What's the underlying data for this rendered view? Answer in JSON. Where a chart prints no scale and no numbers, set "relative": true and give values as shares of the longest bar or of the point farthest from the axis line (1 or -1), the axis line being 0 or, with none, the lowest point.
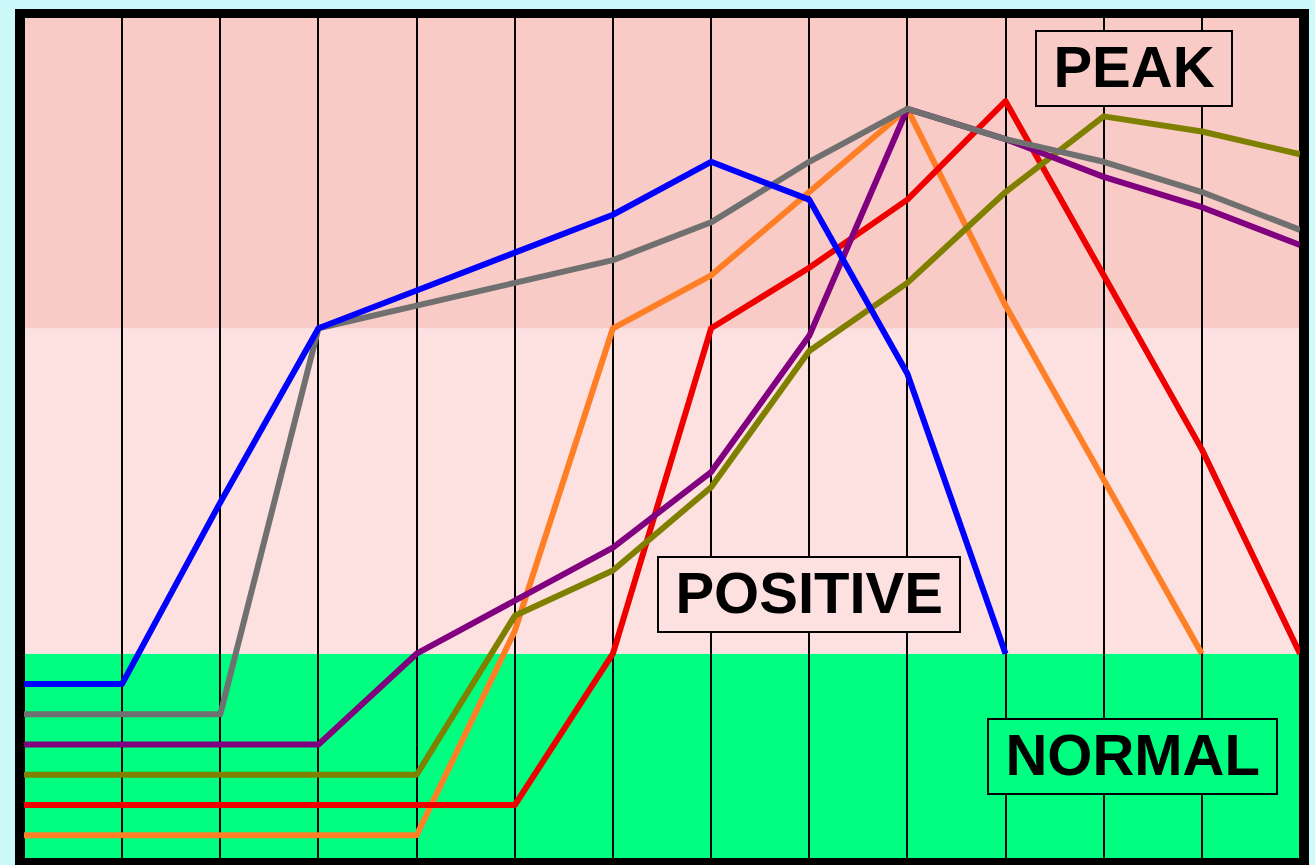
{
  "chart_data": {
    "type": "line",
    "relative": true,
    "grid": "x",
    "tick_labels": false,
    "categories": [
      null,
      null,
      null,
      null,
      null,
      null,
      null,
      null,
      null,
      null,
      null,
      null,
      null,
      null
    ],
    "series": [
      {
        "color": "#0000ff",
        "values": [
          0.23,
          0.23,
          0.47,
          0.7,
          0.75,
          0.8,
          0.85,
          0.92,
          0.87,
          0.64,
          0.27,
          null,
          null,
          null
        ]
      },
      {
        "color": "#707070",
        "values": [
          0.19,
          0.19,
          0.19,
          0.7,
          0.73,
          0.76,
          0.79,
          0.84,
          0.92,
          0.99,
          0.95,
          0.92,
          0.88,
          0.83
        ]
      },
      {
        "color": "#800080",
        "values": [
          0.15,
          0.15,
          0.15,
          0.15,
          0.27,
          0.34,
          0.41,
          0.51,
          0.69,
          0.99,
          0.95,
          0.9,
          0.86,
          0.81
        ]
      },
      {
        "color": "#808000",
        "values": [
          0.11,
          0.11,
          0.11,
          0.11,
          0.11,
          0.32,
          0.38,
          0.49,
          0.67,
          0.76,
          0.88,
          0.98,
          0.96,
          0.93
        ]
      },
      {
        "color": "#ee0000",
        "values": [
          0.07,
          0.07,
          0.07,
          0.07,
          0.07,
          0.07,
          0.27,
          0.7,
          0.78,
          0.87,
          1,
          0.77,
          0.54,
          0.27
        ]
      },
      {
        "color": "#ff7f27",
        "values": [
          0.03,
          0.03,
          0.03,
          0.03,
          0.03,
          0.3,
          0.7,
          0.77,
          0.88,
          0.99,
          0.73,
          0.5,
          0.27,
          null
        ]
      }
    ],
    "bands": [
      {
        "axis": "y",
        "from": 0,
        "to": 0.27,
        "label": "NORMAL",
        "color": "#00ff80"
      },
      {
        "axis": "y",
        "from": 0.27,
        "to": 0.7,
        "label": "POSITIVE",
        "color": "#fde0e0"
      },
      {
        "axis": "y",
        "from": 0.7,
        "to": 1.11,
        "label": "PEAK",
        "color": "#f8cbc6"
      }
    ]
  }
}
